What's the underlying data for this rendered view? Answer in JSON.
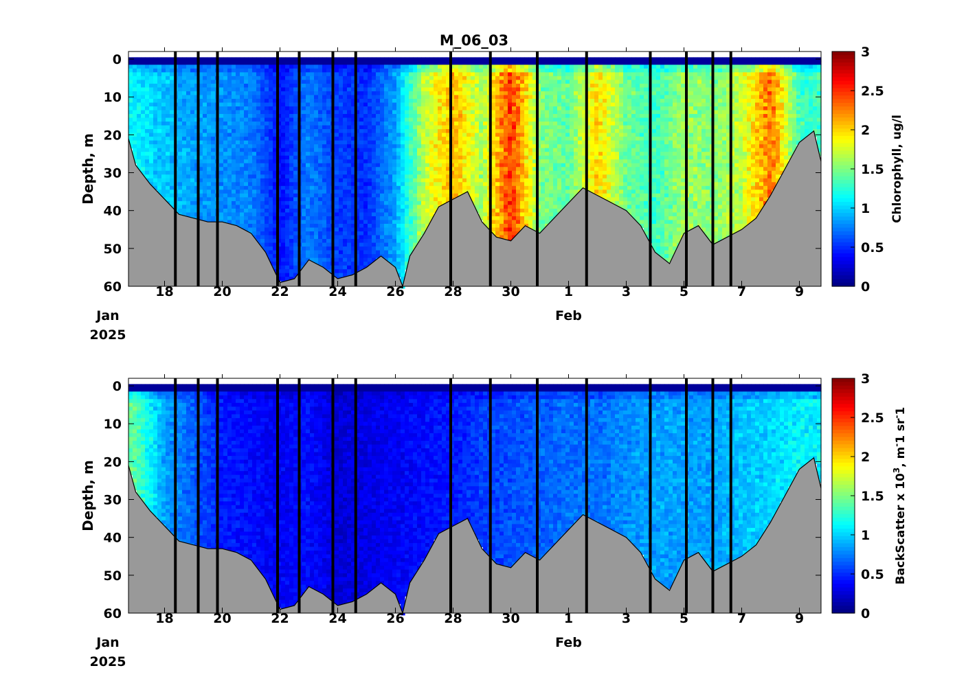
{
  "chart_data": [
    {
      "type": "heatmap",
      "title": "M_06_03",
      "ylabel": "Depth, m",
      "colorbar_label": "Chlorophyll, ug/l",
      "colorbar_ticks": [
        "0",
        "0.5",
        "1",
        "1.5",
        "2",
        "2.5",
        "3"
      ],
      "clim": [
        0,
        3
      ],
      "colormap": "jet",
      "y_ticks": [
        "0",
        "10",
        "20",
        "30",
        "40",
        "50",
        "60"
      ],
      "ylim": [
        60,
        -2
      ],
      "x_range_days": [
        "2025-01-16T18:00",
        "2025-02-09T18:00"
      ],
      "x_ticks": [
        "18",
        "20",
        "22",
        "24",
        "26",
        "28",
        "30",
        "1",
        "3",
        "5",
        "7",
        "9"
      ],
      "x_tick_dates": [
        "2025-01-18",
        "2025-01-20",
        "2025-01-22",
        "2025-01-24",
        "2025-01-26",
        "2025-01-28",
        "2025-01-30",
        "2025-02-01",
        "2025-02-03",
        "2025-02-05",
        "2025-02-07",
        "2025-02-09"
      ],
      "x_month_labels": [
        {
          "date": "2025-01-16",
          "lines": [
            "Jan",
            "2025"
          ]
        },
        {
          "date": "2025-02-01",
          "lines": [
            "Feb"
          ]
        }
      ],
      "vertical_markers": [
        "2025-01-18 09:00",
        "2025-01-19 04:00",
        "2025-01-19 20:00",
        "2025-01-21 22:00",
        "2025-01-22 16:00",
        "2025-01-23 20:00",
        "2025-01-24 15:00",
        "2025-01-27 22:00",
        "2025-01-29 07:00",
        "2025-01-30 22:00",
        "2025-02-01 15:00",
        "2025-02-03 20:00",
        "2025-02-05 02:00",
        "2025-02-06 00:00",
        "2025-02-06 15:00"
      ],
      "bottom_fill_color": "#999999",
      "bottom_profile": {
        "x": [
          "2025-01-16T18:00",
          "2025-01-17T00:00",
          "2025-01-17T12:00",
          "2025-01-18T00:00",
          "2025-01-18T12:00",
          "2025-01-19T00:00",
          "2025-01-19T12:00",
          "2025-01-20T00:00",
          "2025-01-20T12:00",
          "2025-01-21T00:00",
          "2025-01-21T12:00",
          "2025-01-22T00:00",
          "2025-01-22T12:00",
          "2025-01-23T00:00",
          "2025-01-23T12:00",
          "2025-01-24T00:00",
          "2025-01-24T12:00",
          "2025-01-25T00:00",
          "2025-01-25T12:00",
          "2025-01-26T00:00",
          "2025-01-26T06:00",
          "2025-01-26T12:00",
          "2025-01-27T00:00",
          "2025-01-27T12:00",
          "2025-01-28T00:00",
          "2025-01-28T12:00",
          "2025-01-29T00:00",
          "2025-01-29T12:00",
          "2025-01-30T00:00",
          "2025-01-30T12:00",
          "2025-01-31T00:00",
          "2025-01-31T12:00",
          "2025-02-01T00:00",
          "2025-02-01T12:00",
          "2025-02-02T00:00",
          "2025-02-02T12:00",
          "2025-02-03T00:00",
          "2025-02-03T12:00",
          "2025-02-04T00:00",
          "2025-02-04T12:00",
          "2025-02-05T00:00",
          "2025-02-05T12:00",
          "2025-02-06T00:00",
          "2025-02-06T12:00",
          "2025-02-07T00:00",
          "2025-02-07T12:00",
          "2025-02-08T00:00",
          "2025-02-08T12:00",
          "2025-02-09T00:00",
          "2025-02-09T12:00",
          "2025-02-09T18:00"
        ],
        "depth": [
          21,
          28,
          33,
          37,
          41,
          42,
          43,
          43,
          44,
          46,
          51,
          59,
          58,
          53,
          55,
          58,
          57,
          55,
          52,
          55,
          60,
          52,
          46,
          39,
          37,
          35,
          43,
          47,
          48,
          44,
          46,
          42,
          38,
          34,
          36,
          38,
          40,
          44,
          51,
          54,
          46,
          44,
          49,
          47,
          45,
          42,
          36,
          29,
          22,
          19,
          27
        ]
      },
      "series": [
        {
          "field": "chlorophyll",
          "x": [
            "2025-01-17",
            "2025-01-18",
            "2025-01-19",
            "2025-01-20",
            "2025-01-21",
            "2025-01-22",
            "2025-01-23",
            "2025-01-24",
            "2025-01-25",
            "2025-01-26",
            "2025-01-27",
            "2025-01-28",
            "2025-01-29",
            "2025-01-30",
            "2025-01-31",
            "2025-02-01",
            "2025-02-02",
            "2025-02-03",
            "2025-02-04",
            "2025-02-05",
            "2025-02-06",
            "2025-02-07",
            "2025-02-08",
            "2025-02-09"
          ],
          "value": [
            1.1,
            0.95,
            0.85,
            0.8,
            0.75,
            0.4,
            0.75,
            0.55,
            0.5,
            0.85,
            1.7,
            2.1,
            1.6,
            2.5,
            1.5,
            1.4,
            2.0,
            1.45,
            1.3,
            1.6,
            1.5,
            1.7,
            2.3,
            1.3
          ]
        }
      ]
    },
    {
      "type": "heatmap",
      "ylabel": "Depth, m",
      "colorbar_label": "BackScatter x 10^3, m-1 sr-1",
      "colorbar_label_parts": {
        "main": "BackScatter x 10",
        "sup": "3",
        "tail": ", m",
        "sup2": "-",
        "unit1": "1 sr",
        "sup3": "-",
        "unit2": "1"
      },
      "colorbar_ticks": [
        "0",
        "0.5",
        "1",
        "1.5",
        "2",
        "2.5",
        "3"
      ],
      "clim": [
        0,
        3
      ],
      "colormap": "jet",
      "y_ticks": [
        "0",
        "10",
        "20",
        "30",
        "40",
        "50",
        "60"
      ],
      "ylim": [
        60,
        -2
      ],
      "x_ticks": [
        "18",
        "20",
        "22",
        "24",
        "26",
        "28",
        "30",
        "1",
        "3",
        "5",
        "7",
        "9"
      ],
      "x_month_labels": [
        {
          "date": "2025-01-16",
          "lines": [
            "Jan",
            "2025"
          ]
        },
        {
          "date": "2025-02-01",
          "lines": [
            "Feb"
          ]
        }
      ],
      "series": [
        {
          "field": "backscatter",
          "x": [
            "2025-01-17",
            "2025-01-18",
            "2025-01-19",
            "2025-01-20",
            "2025-01-21",
            "2025-01-22",
            "2025-01-23",
            "2025-01-24",
            "2025-01-25",
            "2025-01-26",
            "2025-01-27",
            "2025-01-28",
            "2025-01-29",
            "2025-01-30",
            "2025-01-31",
            "2025-02-01",
            "2025-02-02",
            "2025-02-03",
            "2025-02-04",
            "2025-02-05",
            "2025-02-06",
            "2025-02-07",
            "2025-02-08",
            "2025-02-09"
          ],
          "value": [
            1.4,
            0.85,
            0.65,
            0.45,
            0.4,
            0.35,
            0.4,
            0.25,
            0.3,
            0.35,
            0.4,
            0.45,
            0.55,
            0.6,
            0.65,
            0.7,
            0.7,
            0.8,
            0.85,
            0.85,
            0.85,
            0.95,
            1.0,
            1.1
          ]
        }
      ]
    }
  ]
}
